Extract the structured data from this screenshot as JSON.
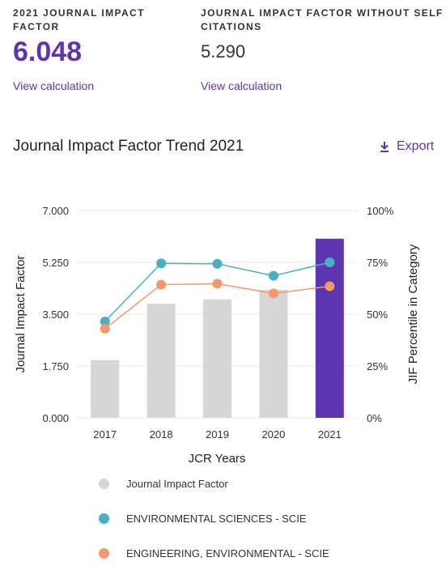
{
  "metrics": {
    "jif": {
      "label_line1": "2021 JOURNAL IMPACT",
      "label_line2": "FACTOR",
      "value": "6.048",
      "link": "View calculation"
    },
    "jif_no_self": {
      "label_line1": "JOURNAL IMPACT FACTOR WITHOUT SELF",
      "label_line2": "CITATIONS",
      "value": "5.290",
      "link": "View calculation"
    }
  },
  "trend": {
    "title": "Journal Impact Factor Trend 2021",
    "export_label": "Export",
    "export_icon": "download-icon"
  },
  "colors": {
    "accent": "#5e35b1",
    "bar": "#d6d6d6",
    "bar_highlight": "#5e35b1",
    "env_sci": "#4ab0c1",
    "eng_env": "#f4996a"
  },
  "chart_data": {
    "type": "bar",
    "categories": [
      "2017",
      "2018",
      "2019",
      "2020",
      "2021"
    ],
    "xlabel": "JCR Years",
    "ylabel": "Journal Impact Factor",
    "ylabel_right": "JIF Percentile in Category",
    "ylim": [
      0,
      7.0
    ],
    "yticks": [
      "0.000",
      "1.750",
      "3.500",
      "5.250",
      "7.000"
    ],
    "ylim_right": [
      0,
      100
    ],
    "yticks_right": [
      "0%",
      "25%",
      "50%",
      "75%",
      "100%"
    ],
    "grid": true,
    "legend_position": "bottom",
    "series": [
      {
        "name": "Journal Impact Factor",
        "type": "bar",
        "axis": "left",
        "values": [
          1.95,
          3.85,
          4.0,
          4.32,
          6.048
        ]
      },
      {
        "name": "ENVIRONMENTAL SCIENCES - SCIE",
        "type": "line",
        "axis": "right",
        "values": [
          46.5,
          74.5,
          74.3,
          68.5,
          75.0
        ]
      },
      {
        "name": "ENGINEERING, ENVIRONMENTAL - SCIE",
        "type": "line",
        "axis": "right",
        "values": [
          43.0,
          64.2,
          64.7,
          60.0,
          63.5
        ]
      }
    ]
  }
}
